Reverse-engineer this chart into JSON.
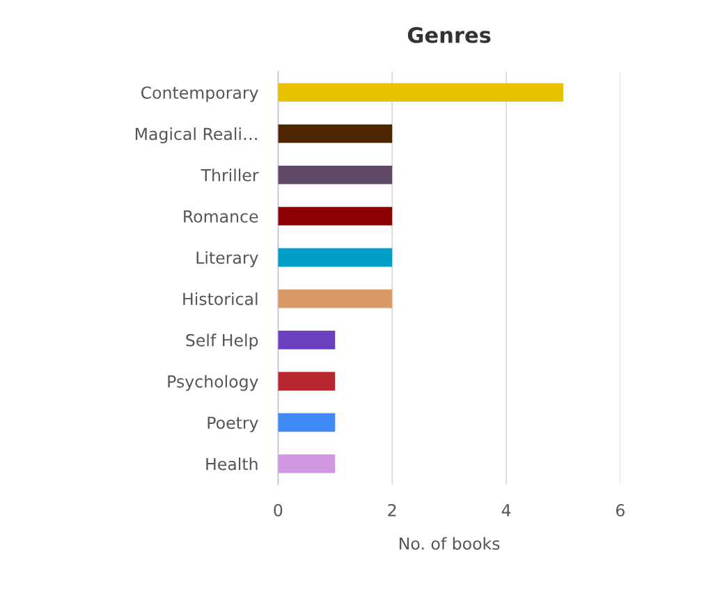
{
  "chart_data": {
    "type": "bar",
    "orientation": "horizontal",
    "title": "Genres",
    "xlabel": "No. of books",
    "categories": [
      "Contemporary",
      "Magical Reali…",
      "Thriller",
      "Romance",
      "Literary",
      "Historical",
      "Self Help",
      "Psychology",
      "Poetry",
      "Health"
    ],
    "values": [
      5,
      2,
      2,
      2,
      2,
      2,
      1,
      1,
      1,
      1
    ],
    "colors": [
      "#e6c200",
      "#4d2600",
      "#5e4a66",
      "#8b0000",
      "#009ec9",
      "#d99a66",
      "#6b3fbf",
      "#b8292f",
      "#3d8af7",
      "#d096e0"
    ],
    "xlim": [
      0,
      6
    ],
    "xticks": [
      0,
      2,
      4,
      6
    ],
    "grid": "x",
    "legend": false
  }
}
